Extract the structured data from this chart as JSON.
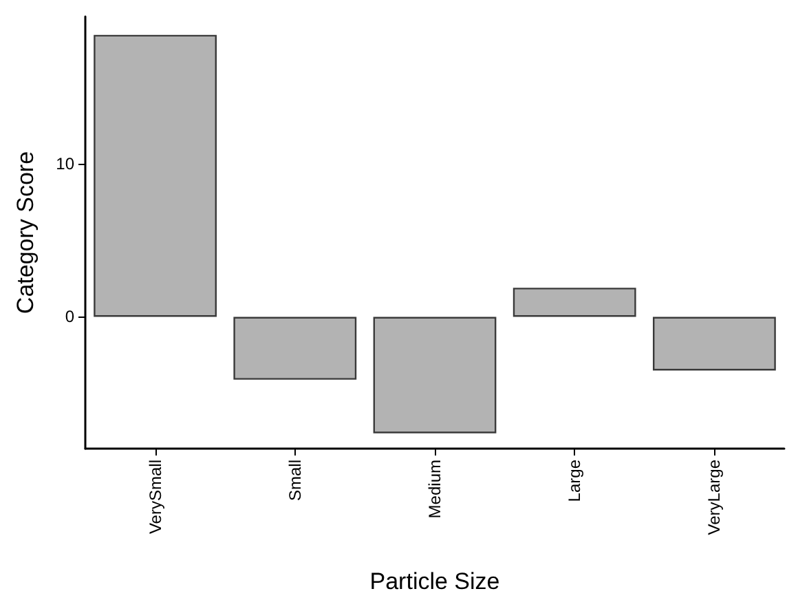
{
  "chart_data": {
    "type": "bar",
    "xlabel": "Particle Size",
    "ylabel": "Category Score",
    "categories": [
      "VerySmall",
      "Small",
      "Medium",
      "Large",
      "VeryLarge"
    ],
    "values": [
      18.4,
      -4.1,
      -7.6,
      1.9,
      -3.5
    ],
    "color": "#b3b3b3",
    "ylim": [
      -8.6,
      19.6
    ],
    "yticks": [
      0,
      10
    ],
    "grid": false
  }
}
